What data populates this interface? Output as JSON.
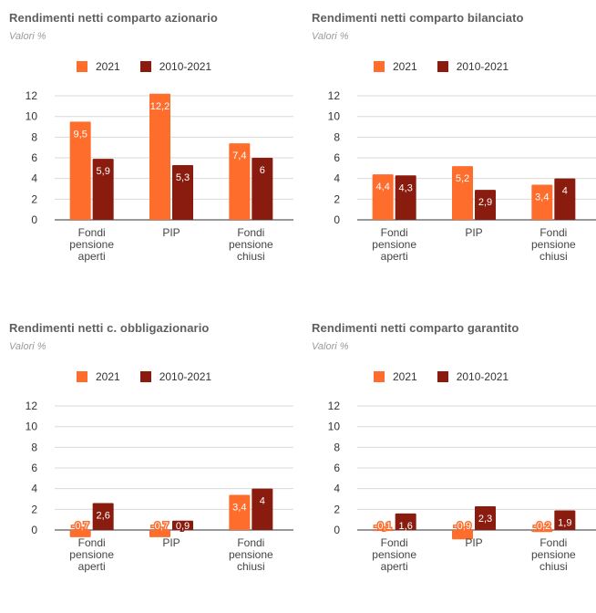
{
  "chart_data": [
    {
      "type": "bar",
      "title": "Rendimenti netti comparto azionario",
      "subtitle": "Valori %",
      "categories": [
        [
          "Fondi",
          "pensione",
          "aperti"
        ],
        [
          "PIP"
        ],
        [
          "Fondi",
          "pensione",
          "chiusi"
        ]
      ],
      "series": [
        {
          "name": "2021",
          "values": [
            9.5,
            12.2,
            7.4
          ],
          "labels": [
            "9,5",
            "12,2",
            "7,4"
          ]
        },
        {
          "name": "2010-2021",
          "values": [
            5.9,
            5.3,
            6
          ],
          "labels": [
            "5,9",
            "5,3",
            "6"
          ]
        }
      ],
      "yticks": [
        "0",
        "2",
        "4",
        "6",
        "8",
        "10",
        "12"
      ],
      "ylim": [
        0,
        12
      ],
      "grid": true,
      "legend": "top"
    },
    {
      "type": "bar",
      "title": "Rendimenti netti comparto bilanciato",
      "subtitle": "Valori %",
      "categories": [
        [
          "Fondi",
          "pensione",
          "aperti"
        ],
        [
          "PIP"
        ],
        [
          "Fondi",
          "pensione",
          "chiusi"
        ]
      ],
      "series": [
        {
          "name": "2021",
          "values": [
            4.4,
            5.2,
            3.4
          ],
          "labels": [
            "4,4",
            "5,2",
            "3,4"
          ]
        },
        {
          "name": "2010-2021",
          "values": [
            4.3,
            2.9,
            4
          ],
          "labels": [
            "4,3",
            "2,9",
            "4"
          ]
        }
      ],
      "yticks": [
        "0",
        "2",
        "4",
        "6",
        "8",
        "10",
        "12"
      ],
      "ylim": [
        0,
        12
      ],
      "grid": true,
      "legend": "top"
    },
    {
      "type": "bar",
      "title": "Rendimenti netti c. obbligazionario",
      "subtitle": "Valori %",
      "categories": [
        [
          "Fondi",
          "pensione",
          "aperti"
        ],
        [
          "PIP"
        ],
        [
          "Fondi",
          "pensione",
          "chiusi"
        ]
      ],
      "series": [
        {
          "name": "2021",
          "values": [
            -0.7,
            -0.7,
            3.4
          ],
          "labels": [
            "-0,7",
            "-0,7",
            "3,4"
          ]
        },
        {
          "name": "2010-2021",
          "values": [
            2.6,
            0.9,
            4
          ],
          "labels": [
            "2,6",
            "0,9",
            "4"
          ]
        }
      ],
      "yticks": [
        "0",
        "2",
        "4",
        "6",
        "8",
        "10",
        "12"
      ],
      "ylim": [
        0,
        12
      ],
      "grid": true,
      "legend": "top"
    },
    {
      "type": "bar",
      "title": "Rendimenti netti comparto garantito",
      "subtitle": "Valori %",
      "categories": [
        [
          "Fondi",
          "pensione",
          "aperti"
        ],
        [
          "PIP"
        ],
        [
          "Fondi",
          "pensione",
          "chiusi"
        ]
      ],
      "series": [
        {
          "name": "2021",
          "values": [
            -0.1,
            -0.9,
            -0.2
          ],
          "labels": [
            "-0,1",
            "-0,9",
            "-0,2"
          ]
        },
        {
          "name": "2010-2021",
          "values": [
            1.6,
            2.3,
            1.9
          ],
          "labels": [
            "1,6",
            "2,3",
            "1,9"
          ]
        }
      ],
      "yticks": [
        "0",
        "2",
        "4",
        "6",
        "8",
        "10",
        "12"
      ],
      "ylim": [
        0,
        12
      ],
      "grid": true,
      "legend": "top"
    }
  ],
  "colors": {
    "series_2021": "#ff6d2d",
    "series_2010_2021": "#8a1c0f",
    "grid": "#d9d9d9",
    "axis": "#333333"
  }
}
